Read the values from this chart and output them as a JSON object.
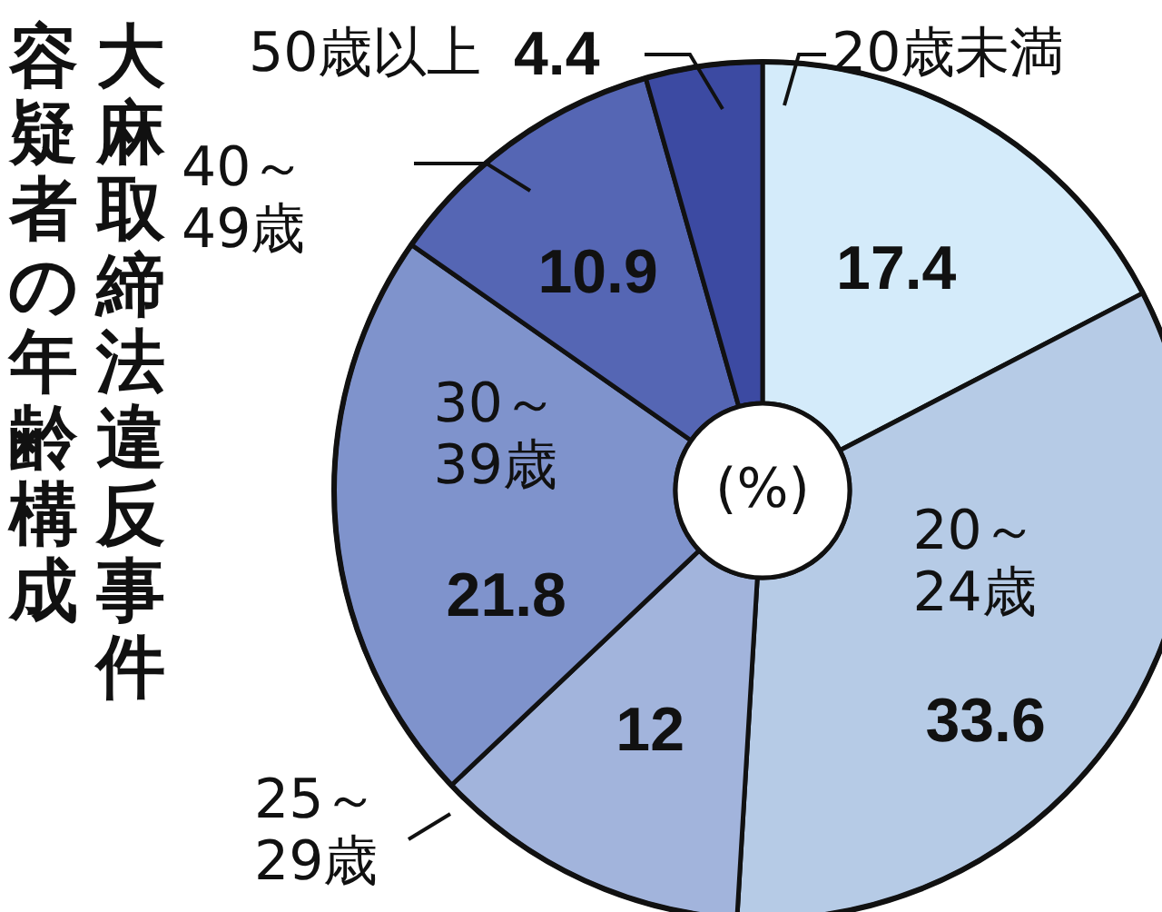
{
  "chart_data": {
    "type": "donut",
    "title": "大麻取締法違反事件容疑者の年齢構成",
    "categories": [
      "20歳未満",
      "20～24歳",
      "25～29歳",
      "30～39歳",
      "40～49歳",
      "50歳以上"
    ],
    "values": [
      17.4,
      33.6,
      12,
      21.8,
      10.9,
      4.4
    ],
    "colors": [
      "#d4ebfa",
      "#b6cbe6",
      "#a2b4dc",
      "#7f93cc",
      "#5566b4",
      "#3c4aa2"
    ],
    "data_labels": true,
    "annotations": [
      "(%)"
    ]
  }
}
